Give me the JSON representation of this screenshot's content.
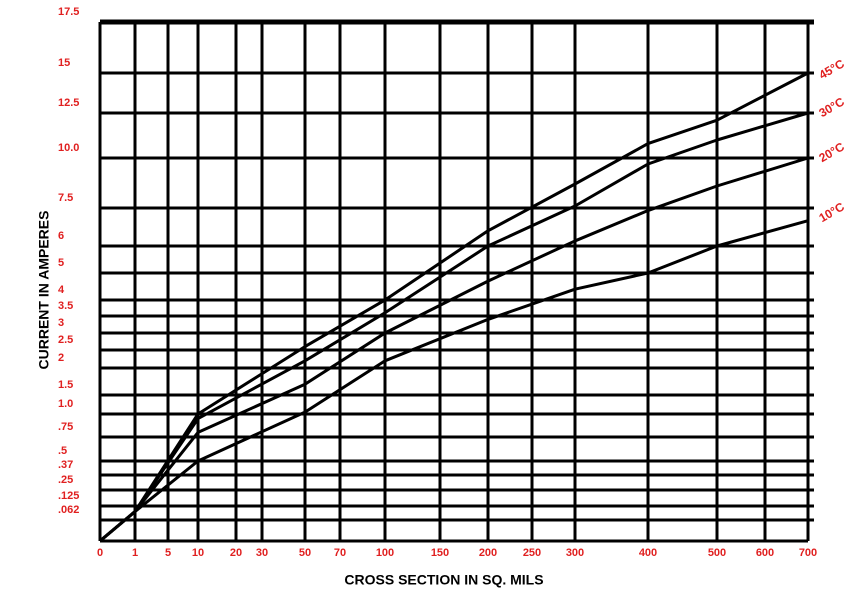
{
  "chart_data": {
    "type": "line",
    "x_label": "CROSS SECTION IN SQ. MILS",
    "y_label": "CURRENT IN AMPERES",
    "x": [
      0,
      1,
      10,
      50,
      100,
      200,
      300,
      400,
      500,
      700
    ],
    "series": [
      {
        "name": "10°C",
        "color": "#000000",
        "values": [
          0,
          0.1,
          0.5,
          1.05,
          2.2,
          3.4,
          4.4,
          5,
          6,
          7
        ]
      },
      {
        "name": "20°C",
        "color": "#000000",
        "values": [
          0,
          0.1,
          0.8,
          1.7,
          3,
          4.7,
          6.2,
          7.4,
          8.6,
          10
        ]
      },
      {
        "name": "30°C",
        "color": "#000000",
        "values": [
          0,
          0.1,
          0.95,
          2.2,
          3.6,
          6,
          7.6,
          9.7,
          11,
          12.5
        ]
      },
      {
        "name": "45°C",
        "color": "#000000",
        "values": [
          0,
          0.1,
          1,
          2.6,
          4,
          6.6,
          8.7,
          10.8,
          12.1,
          15
        ]
      }
    ],
    "xlim": [
      0,
      700
    ],
    "xticks": [
      0,
      1,
      5,
      10,
      20,
      30,
      50,
      70,
      100,
      150,
      200,
      250,
      300,
      400,
      500,
      600,
      700
    ],
    "ylim": [
      0,
      17.5
    ],
    "yticks": [
      17.5,
      15,
      12.5,
      {
        "value": 10,
        "label": "10.0"
      },
      7.5,
      6,
      5,
      4,
      3.5,
      3,
      2.5,
      2,
      1.5,
      {
        "value": 1,
        "label": "1.0"
      },
      {
        "value": 0.75,
        "label": ".75"
      },
      {
        "value": 0.5,
        "label": ".5"
      },
      {
        "value": 0.37,
        "label": ".37"
      },
      {
        "value": 0.25,
        "label": ".25"
      },
      {
        "value": 0.125,
        "label": ".125"
      },
      {
        "value": 0.062,
        "label": ".062"
      }
    ],
    "grid": true,
    "tick_label_color": "#e02020"
  }
}
